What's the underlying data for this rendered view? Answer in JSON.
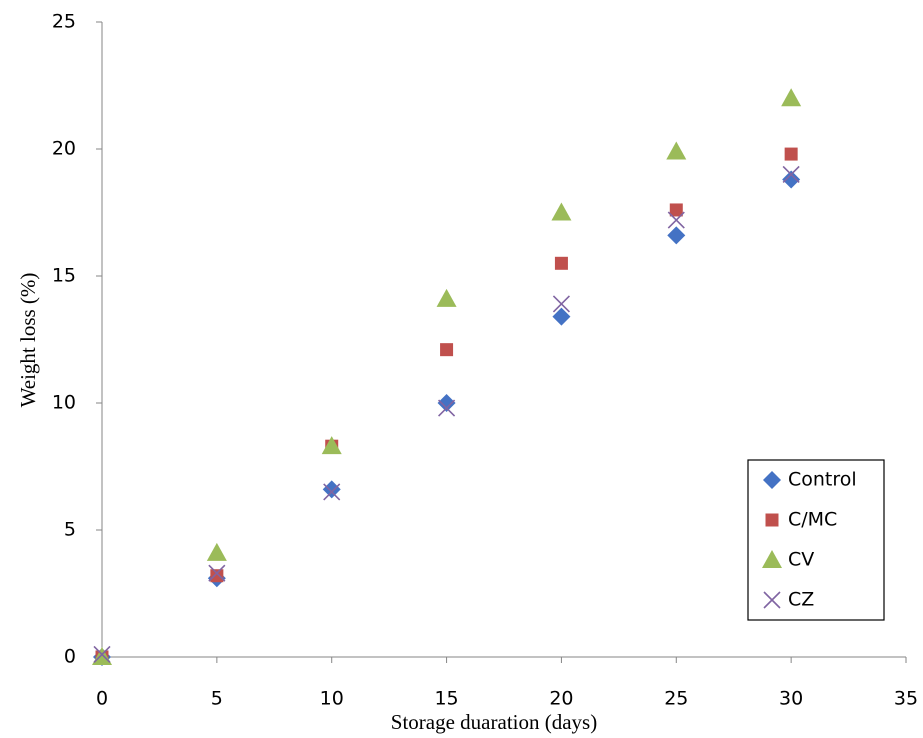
{
  "chart_data": {
    "type": "scatter",
    "x_label": "Storage duaration (days)",
    "y_label": "Weight loss (%)",
    "x": [
      0,
      5,
      10,
      15,
      20,
      25,
      30
    ],
    "series": [
      {
        "name": "Control",
        "color": "#4472c4",
        "marker": "diamond",
        "values": [
          0,
          3.1,
          6.6,
          10,
          13.4,
          16.6,
          18.8
        ]
      },
      {
        "name": "C/MC",
        "color": "#c0504d",
        "marker": "square",
        "values": [
          0,
          3.2,
          8.3,
          12.1,
          15.5,
          17.6,
          19.8
        ]
      },
      {
        "name": "CV",
        "color": "#9bbb59",
        "marker": "triangle",
        "values": [
          0,
          4.1,
          8.3,
          14.1,
          17.5,
          19.9,
          22
        ]
      },
      {
        "name": "CZ",
        "color": "#8064a2",
        "marker": "cross",
        "values": [
          0.1,
          3.3,
          6.5,
          9.8,
          13.9,
          17.2,
          19
        ]
      }
    ],
    "xlim": [
      0,
      35
    ],
    "xticks": [
      0,
      5,
      10,
      15,
      20,
      25,
      30,
      35
    ],
    "ylim": [
      0,
      25
    ],
    "yticks": [
      0,
      5,
      10,
      15,
      20,
      25
    ],
    "grid": false,
    "legend": "lower-right"
  }
}
